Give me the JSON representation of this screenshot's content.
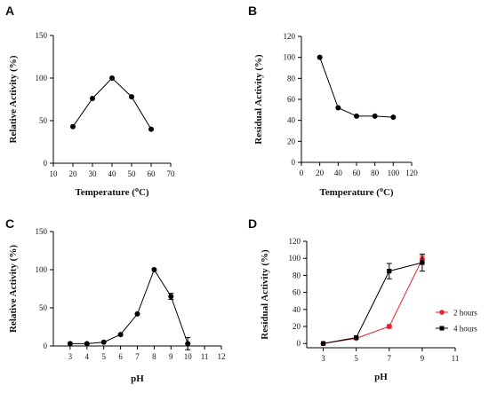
{
  "chart_data": [
    {
      "panel": "A",
      "type": "line",
      "xlabel": "Temperature (",
      "xlabel_sup": "o",
      "xlabel_suffix": "C)",
      "ylabel": "Relative Activity (%)",
      "xlim": [
        10,
        70
      ],
      "ylim": [
        0,
        150
      ],
      "xticks": [
        10,
        20,
        30,
        40,
        50,
        60,
        70
      ],
      "yticks": [
        0,
        50,
        100,
        150
      ],
      "series": [
        {
          "color": "#000000",
          "marker": "circle",
          "x": [
            20,
            30,
            40,
            50,
            60
          ],
          "y": [
            43,
            76,
            100,
            78,
            40
          ]
        }
      ]
    },
    {
      "panel": "B",
      "type": "line",
      "xlabel": "Temperature (",
      "xlabel_sup": "o",
      "xlabel_suffix": "C)",
      "ylabel": "Residual Activity (%)",
      "xlim": [
        0,
        120
      ],
      "ylim": [
        0,
        120
      ],
      "xticks": [
        0,
        20,
        40,
        60,
        80,
        100,
        120
      ],
      "yticks": [
        0,
        20,
        40,
        60,
        80,
        100,
        120
      ],
      "series": [
        {
          "color": "#000000",
          "marker": "circle",
          "x": [
            20,
            40,
            60,
            80,
            100
          ],
          "y": [
            100,
            52,
            44,
            44,
            43
          ]
        }
      ]
    },
    {
      "panel": "C",
      "type": "line",
      "xlabel": "pH",
      "ylabel": "Relative Activity (%)",
      "xlim": [
        2,
        12
      ],
      "ylim": [
        0,
        150
      ],
      "xticks": [
        3,
        4,
        5,
        6,
        7,
        8,
        9,
        10,
        11,
        12
      ],
      "yticks": [
        0,
        50,
        100,
        150
      ],
      "series": [
        {
          "color": "#000000",
          "marker": "circle",
          "x": [
            3,
            4,
            5,
            6,
            7,
            8,
            9,
            10
          ],
          "y": [
            3,
            3,
            5,
            15,
            42,
            100,
            65,
            3
          ],
          "err": [
            0,
            0,
            0,
            0,
            0,
            0,
            4,
            8
          ]
        }
      ]
    },
    {
      "panel": "D",
      "type": "line",
      "xlabel": "pH",
      "ylabel": "Residual Activity (%)",
      "xlim": [
        2,
        11
      ],
      "ylim": [
        -5,
        120
      ],
      "xticks": [
        3,
        5,
        7,
        9,
        11
      ],
      "yticks": [
        0,
        20,
        40,
        60,
        80,
        100,
        120
      ],
      "legend_position": "right",
      "series": [
        {
          "name": "2 hours",
          "color": "#e8202a",
          "marker": "circle",
          "x": [
            3,
            5,
            7,
            9
          ],
          "y": [
            0,
            6,
            20,
            99
          ],
          "err": [
            0,
            0,
            2,
            4
          ]
        },
        {
          "name": "4 hours",
          "color": "#000000",
          "marker": "square",
          "x": [
            3,
            5,
            7,
            9
          ],
          "y": [
            0,
            7,
            85,
            95
          ],
          "err": [
            0,
            0,
            9,
            10
          ]
        }
      ]
    }
  ]
}
